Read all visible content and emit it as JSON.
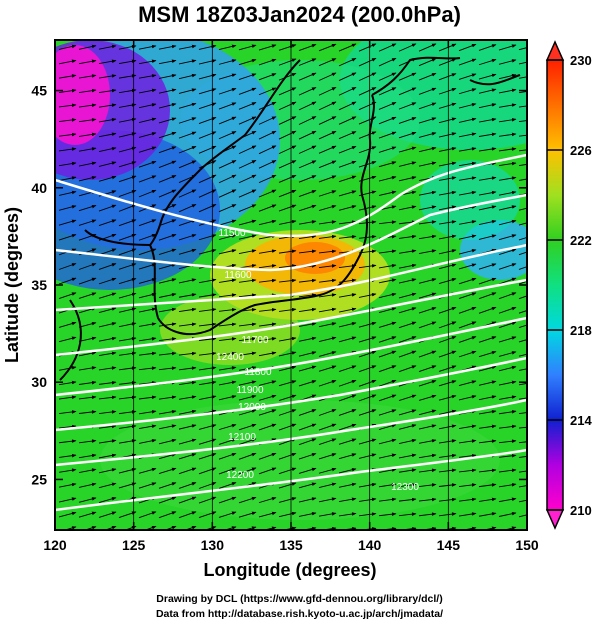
{
  "title": "MSM 18Z03Jan2024 (200.0hPa)",
  "xlabel": "Longitude (degrees)",
  "ylabel": "Latitude  (degrees)",
  "credits": {
    "line1": "Drawing by DCL (https://www.gfd-dennou.org/library/dcl/)",
    "line2": "Data from http://database.rish.kyoto-u.ac.jp/arch/jmadata/"
  },
  "chart_data": {
    "type": "heatmap",
    "xlim": [
      120,
      150
    ],
    "ylim": [
      22.4,
      47.6
    ],
    "x_ticks": [
      "120",
      "125",
      "130",
      "135",
      "140",
      "145",
      "150"
    ],
    "y_ticks": [
      "25",
      "30",
      "35",
      "40",
      "45"
    ],
    "colorbar": {
      "min": 210,
      "max": 230,
      "tick_labels": [
        "210",
        "214",
        "218",
        "222",
        "226",
        "230"
      ],
      "stops": [
        {
          "value": 210,
          "color": "#ff00cc"
        },
        {
          "value": 212,
          "color": "#b000e0"
        },
        {
          "value": 214,
          "color": "#1020d0"
        },
        {
          "value": 216,
          "color": "#3080ff"
        },
        {
          "value": 218,
          "color": "#00d8e0"
        },
        {
          "value": 220,
          "color": "#10e080"
        },
        {
          "value": 222,
          "color": "#30d020"
        },
        {
          "value": 224,
          "color": "#a0e020"
        },
        {
          "value": 226,
          "color": "#ffc000"
        },
        {
          "value": 228,
          "color": "#ff7000"
        },
        {
          "value": 230,
          "color": "#ff2000"
        }
      ]
    },
    "contour_labels": [
      "11500",
      "11600",
      "11700",
      "11800",
      "11900",
      "12000",
      "12100",
      "12200",
      "12300",
      "12400"
    ],
    "wind": "westerly"
  }
}
